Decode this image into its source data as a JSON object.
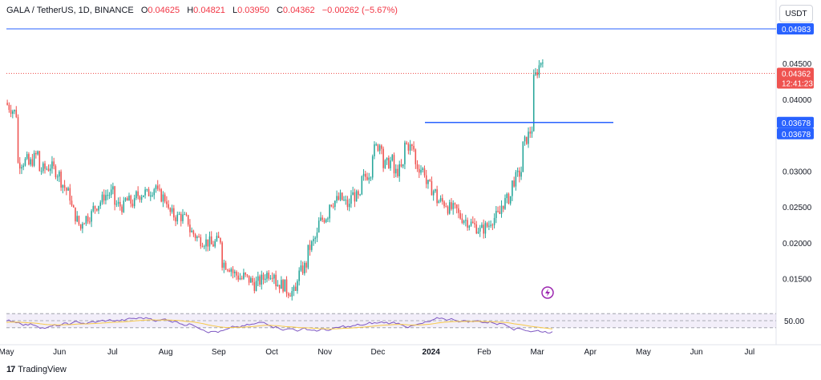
{
  "header": {
    "symbol": "GALA / TetherUS, 1D, BINANCE",
    "o_label": "O",
    "o_value": "0.04625",
    "h_label": "H",
    "h_value": "0.04821",
    "l_label": "L",
    "l_value": "0.03950",
    "c_label": "C",
    "c_value": "0.04362",
    "change": "−0.00262 (−5.67%)"
  },
  "toolbar": {
    "currency_label": "USDT"
  },
  "footer": {
    "logo_mark": "17",
    "logo_text": "TradingView"
  },
  "colors": {
    "up": "#26a69a",
    "down": "#ef5350",
    "level": "#2962ff",
    "rsi": "#7e57c2",
    "rsi_ma": "#f7c948"
  },
  "chart_data": {
    "type": "candlestick",
    "price_axis_ticks": [
      "0.04500",
      "0.04000",
      "0.03000",
      "0.02500",
      "0.02000",
      "0.01500"
    ],
    "price_axis_range": [
      0.0125,
      0.0505
    ],
    "time_axis_labels": [
      "May",
      "Jun",
      "Jul",
      "Aug",
      "Sep",
      "Oct",
      "Nov",
      "Dec",
      "2024",
      "Feb",
      "Mar",
      "Apr",
      "May",
      "Jun",
      "Jul"
    ],
    "horizontal_levels": [
      {
        "price": 0.04983,
        "label": "0.04983"
      },
      {
        "price": 0.03678,
        "label": "0.03678"
      }
    ],
    "last_price": {
      "price": 0.04362,
      "label": "0.04362",
      "countdown": "12:41:23"
    },
    "rsi_axis_label": "50.00",
    "rsi_range": [
      0,
      100
    ],
    "close_path": [
      [
        0.0395,
        0.038
      ],
      [
        0.031,
        0.0315
      ],
      [
        0.0305,
        0.0325
      ],
      [
        0.03,
        0.0305
      ],
      [
        0.031,
        0.0295
      ],
      [
        0.029,
        0.0265
      ],
      [
        0.0255,
        0.022
      ],
      [
        0.023,
        0.024
      ],
      [
        0.0245,
        0.026
      ],
      [
        0.0265,
        0.027
      ],
      [
        0.0255,
        0.025
      ],
      [
        0.026,
        0.0255
      ],
      [
        0.0265,
        0.027
      ],
      [
        0.0265,
        0.028
      ],
      [
        0.027,
        0.026
      ],
      [
        0.0245,
        0.0235
      ],
      [
        0.024,
        0.023
      ],
      [
        0.022,
        0.0205
      ],
      [
        0.0205,
        0.02
      ],
      [
        0.0195,
        0.0205
      ],
      [
        0.0175,
        0.0165
      ],
      [
        0.016,
        0.015
      ],
      [
        0.0155,
        0.0145
      ],
      [
        0.014,
        0.015
      ],
      [
        0.0155,
        0.016
      ],
      [
        0.0145,
        0.014
      ],
      [
        0.0135,
        0.013
      ],
      [
        0.015,
        0.017
      ],
      [
        0.0185,
        0.021
      ],
      [
        0.0225,
        0.024
      ],
      [
        0.0255,
        0.026
      ],
      [
        0.0265,
        0.025
      ],
      [
        0.027,
        0.026
      ],
      [
        0.0285,
        0.03
      ],
      [
        0.0325,
        0.034
      ],
      [
        0.0305,
        0.0315
      ],
      [
        0.0295,
        0.0305
      ],
      [
        0.034,
        0.033
      ],
      [
        0.031,
        0.03
      ],
      [
        0.0285,
        0.027
      ],
      [
        0.026,
        0.0255
      ],
      [
        0.025,
        0.0245
      ],
      [
        0.024,
        0.023
      ],
      [
        0.023,
        0.022
      ],
      [
        0.0215,
        0.0225
      ],
      [
        0.023,
        0.024
      ],
      [
        0.025,
        0.0265
      ],
      [
        0.028,
        0.03
      ],
      [
        0.033,
        0.036
      ],
      [
        0.042,
        0.046
      ]
    ]
  }
}
